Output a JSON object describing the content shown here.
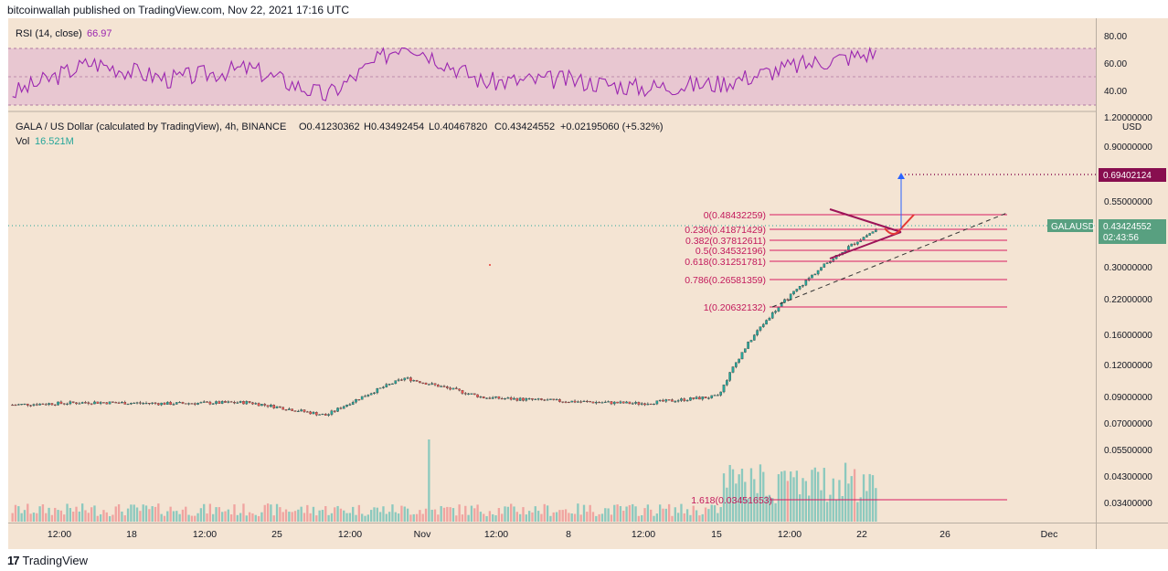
{
  "header": {
    "published_line": "bitcoinwallah published on TradingView.com, Nov 22, 2021 17:16 UTC"
  },
  "footer": {
    "brand": "TradingView",
    "logo_glyph": "17"
  },
  "colors": {
    "background": "#f4e4d3",
    "up_candle": "#26a69a",
    "down_candle": "#ef5350",
    "rsi_line": "#9c27b0",
    "rsi_band": "#e8c7d1",
    "fib_line": "#d81b60",
    "target_label_bg": "#880e4f",
    "price_label_bg": "#58a080",
    "projection_arrow": "#2962ff"
  },
  "rsi_pane": {
    "label": "RSI (14, close)",
    "value": "66.97",
    "ticks": [
      "80.00",
      "60.00",
      "40.00"
    ]
  },
  "price_pane": {
    "symbol_line": "GALA / US Dollar (calculated by TradingView), 4h, BINANCE",
    "open": "O0.41230362",
    "high": "H0.43492454",
    "low": "L0.40467820",
    "close": "C0.43424552",
    "change": "+0.02195060 (+5.32%)",
    "vol_label": "Vol",
    "vol_value": "16.521M"
  },
  "price_axis": {
    "top_label": "1.20000000",
    "unit": "USD",
    "ticks": [
      "0.90000000",
      "0.55000000",
      "0.30000000",
      "0.22000000",
      "0.16000000",
      "0.12000000",
      "0.09000000",
      "0.07000000",
      "0.05500000",
      "0.04300000",
      "0.03400000"
    ],
    "target_label": "0.69402124",
    "current_symbol": "GALAUSD",
    "current_price": "0.43424552",
    "countdown": "02:43:56"
  },
  "time_axis": {
    "labels": [
      "12:00",
      "18",
      "12:00",
      "25",
      "12:00",
      "Nov",
      "12:00",
      "8",
      "12:00",
      "15",
      "12:00",
      "22",
      "26",
      "Dec"
    ]
  },
  "fib_levels": [
    {
      "label": "0(0.48432259)",
      "price": 0.48432259
    },
    {
      "label": "0.236(0.41871429)",
      "price": 0.41871429
    },
    {
      "label": "0.382(0.37812611)",
      "price": 0.37812611
    },
    {
      "label": "0.5(0.34532196)",
      "price": 0.34532196
    },
    {
      "label": "0.618(0.31251781)",
      "price": 0.31251781
    },
    {
      "label": "0.786(0.26581359)",
      "price": 0.26581359
    },
    {
      "label": "1(0.20632132)",
      "price": 0.20632132
    },
    {
      "label": "1.618(0.03451653)",
      "price": 0.03451653
    }
  ],
  "chart_data": {
    "type": "line",
    "title": "GALA / US Dollar (calculated by TradingView), 4h, BINANCE",
    "x_labels": [
      "Oct 14 12:00",
      "Oct 18",
      "Oct 21 12:00",
      "Oct 25",
      "Oct 28 12:00",
      "Nov 1",
      "Nov 4 12:00",
      "Nov 8",
      "Nov 11 12:00",
      "Nov 15",
      "Nov 18 12:00",
      "Nov 22"
    ],
    "series": [
      {
        "name": "Close",
        "values": [
          0.086,
          0.088,
          0.087,
          0.088,
          0.078,
          0.11,
          0.092,
          0.089,
          0.087,
          0.093,
          0.25,
          0.434
        ]
      },
      {
        "name": "RSI (14, close)",
        "values": [
          38,
          60,
          48,
          56,
          36,
          75,
          46,
          48,
          42,
          45,
          58,
          67
        ]
      }
    ],
    "ylim": [
      0.03,
      1.2
    ],
    "log_scale": true,
    "annotations": [
      "Descending triangle pattern",
      "Target 0.69402124",
      "Fibonacci retracement levels"
    ]
  }
}
